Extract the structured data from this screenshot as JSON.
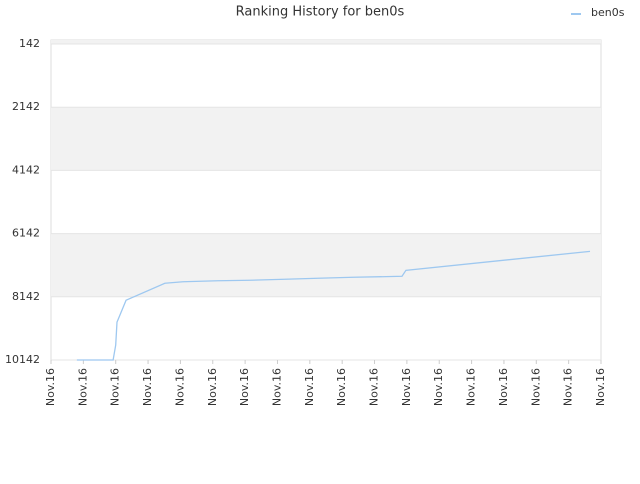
{
  "chart_data": {
    "type": "line",
    "title": "Ranking History for ben0s",
    "x": [
      0.8,
      1.92,
      2.0,
      2.04,
      2.13,
      2.32,
      3.52,
      4.08,
      5.16,
      6.15,
      7.23,
      8.25,
      9.34,
      10.85,
      10.97,
      16.66
    ],
    "series": [
      {
        "name": "ben0s",
        "color": "#9ec8f0",
        "values": [
          10142,
          10142,
          9669,
          8944,
          8723,
          8250,
          7713,
          7666,
          7635,
          7619,
          7587,
          7556,
          7524,
          7493,
          7304,
          6704
        ]
      }
    ],
    "xlim": [
      0,
      17
    ],
    "xticks": [
      {
        "value": 0,
        "label": "Nov.16"
      },
      {
        "value": 1,
        "label": "Nov.16"
      },
      {
        "value": 2,
        "label": "Nov.16"
      },
      {
        "value": 3,
        "label": "Nov.16"
      },
      {
        "value": 4,
        "label": "Nov.16"
      },
      {
        "value": 5,
        "label": "Nov.16"
      },
      {
        "value": 6,
        "label": "Nov.16"
      },
      {
        "value": 7,
        "label": "Nov.16"
      },
      {
        "value": 8,
        "label": "Nov.16"
      },
      {
        "value": 9,
        "label": "Nov.16"
      },
      {
        "value": 10,
        "label": "Nov.16"
      },
      {
        "value": 11,
        "label": "Nov.16"
      },
      {
        "value": 12,
        "label": "Nov.16"
      },
      {
        "value": 13,
        "label": "Nov.16"
      },
      {
        "value": 14,
        "label": "Nov.16"
      },
      {
        "value": 15,
        "label": "Nov.16"
      },
      {
        "value": 16,
        "label": "Nov.16"
      },
      {
        "value": 17,
        "label": "Nov.16"
      }
    ],
    "ylim": [
      10142,
      142
    ],
    "yticks": [
      142,
      2142,
      4142,
      6142,
      8142,
      10142
    ],
    "grid": true,
    "legend": "top-right"
  }
}
